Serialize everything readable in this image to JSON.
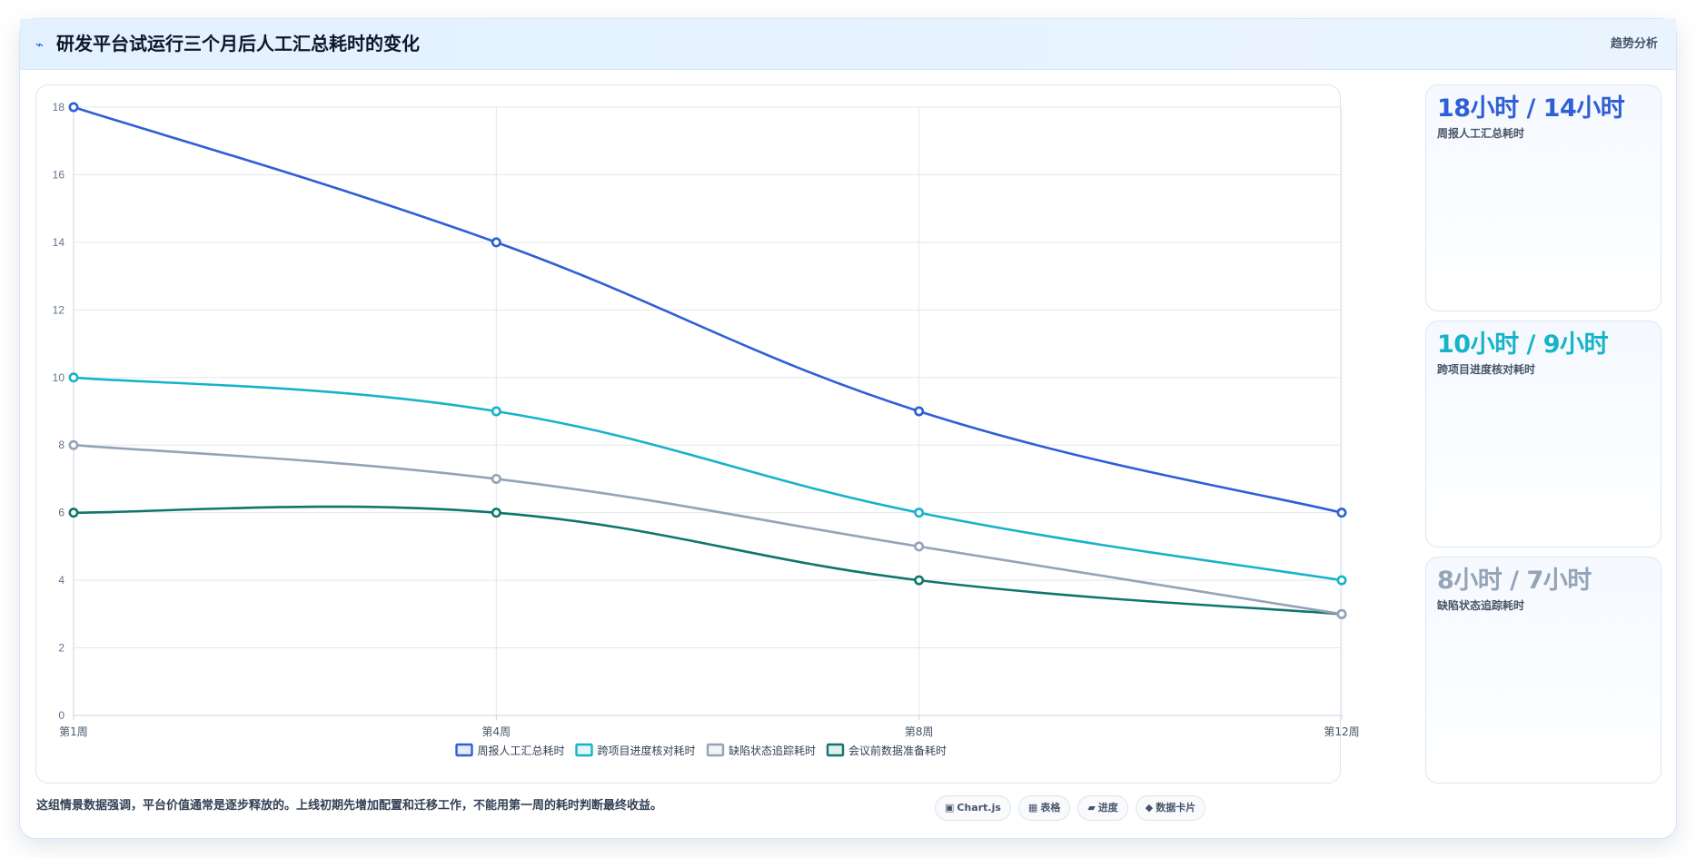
{
  "header": {
    "icon": "trend-line-icon",
    "icon_glyph": "⌁",
    "title": "研发平台试运行三个月后人工汇总耗时的变化",
    "tag": "趋势分析"
  },
  "stats": [
    {
      "value": "18小时 / 14小时",
      "label": "周报人工汇总耗时",
      "color": "#2f5fd6"
    },
    {
      "value": "10小时 / 9小时",
      "label": "跨项目进度核对耗时",
      "color": "#17b3c9"
    },
    {
      "value": "8小时 / 7小时",
      "label": "缺陷状态追踪耗时",
      "color": "#94a3b8"
    }
  ],
  "footer": {
    "note": "这组情景数据强调，平台价值通常是逐步释放的。上线初期先增加配置和迁移工作，不能用第一周的耗时判断最终收益。",
    "chips": [
      {
        "icon": "chart-icon",
        "glyph": "▣",
        "label": "Chart.js"
      },
      {
        "icon": "table-icon",
        "glyph": "▦",
        "label": "表格"
      },
      {
        "icon": "progress-icon",
        "glyph": "▰",
        "label": "进度"
      },
      {
        "icon": "data-card-icon",
        "glyph": "◆",
        "label": "数据卡片"
      }
    ]
  },
  "chart_data": {
    "type": "line",
    "title": "",
    "xlabel": "",
    "ylabel": "",
    "categories": [
      "第1周",
      "第4周",
      "第8周",
      "第12周"
    ],
    "ylim": [
      0,
      18
    ],
    "yticks": [
      0,
      2,
      4,
      6,
      8,
      10,
      12,
      14,
      16,
      18
    ],
    "grid": true,
    "legend_position": "bottom",
    "series": [
      {
        "name": "周报人工汇总耗时",
        "values": [
          18,
          14,
          9,
          6
        ],
        "color": "#2f5fd6"
      },
      {
        "name": "跨项目进度核对耗时",
        "values": [
          10,
          9,
          6,
          4
        ],
        "color": "#17b3c9"
      },
      {
        "name": "缺陷状态追踪耗时",
        "values": [
          8,
          7,
          5,
          3
        ],
        "color": "#94a3b8"
      },
      {
        "name": "会议前数据准备耗时",
        "values": [
          6,
          6,
          4,
          3
        ],
        "color": "#0f766e"
      }
    ]
  }
}
